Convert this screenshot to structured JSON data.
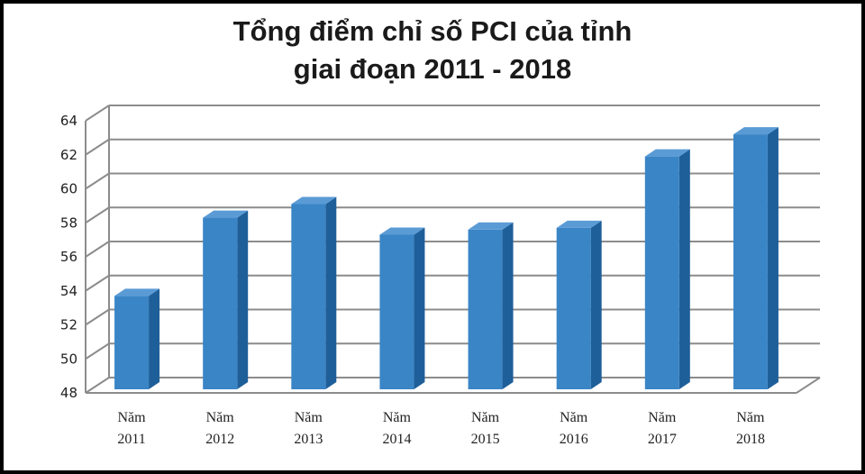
{
  "chart_data": {
    "type": "bar",
    "title": "Tổng điểm chỉ số PCI của tỉnh",
    "subtitle": "giai đoạn 2011 - 2018",
    "categories": [
      [
        "Năm",
        "2011"
      ],
      [
        "Năm",
        "2012"
      ],
      [
        "Năm",
        "2013"
      ],
      [
        "Năm",
        "2014"
      ],
      [
        "Năm",
        "2015"
      ],
      [
        "Năm",
        "2016"
      ],
      [
        "Năm",
        "2017"
      ],
      [
        "Năm",
        "2018"
      ]
    ],
    "values": [
      53.7,
      58.3,
      59.1,
      57.3,
      57.6,
      57.7,
      61.9,
      63.2
    ],
    "ylim": [
      48,
      64
    ],
    "yticks": [
      48,
      50,
      52,
      54,
      56,
      58,
      60,
      62,
      64
    ],
    "grid": true,
    "legend": "none",
    "colors": {
      "bar_front": "#3a85c6",
      "bar_side": "#1f5f99",
      "bar_top": "#5a9bd5",
      "grid": "#8c8c8c"
    }
  }
}
